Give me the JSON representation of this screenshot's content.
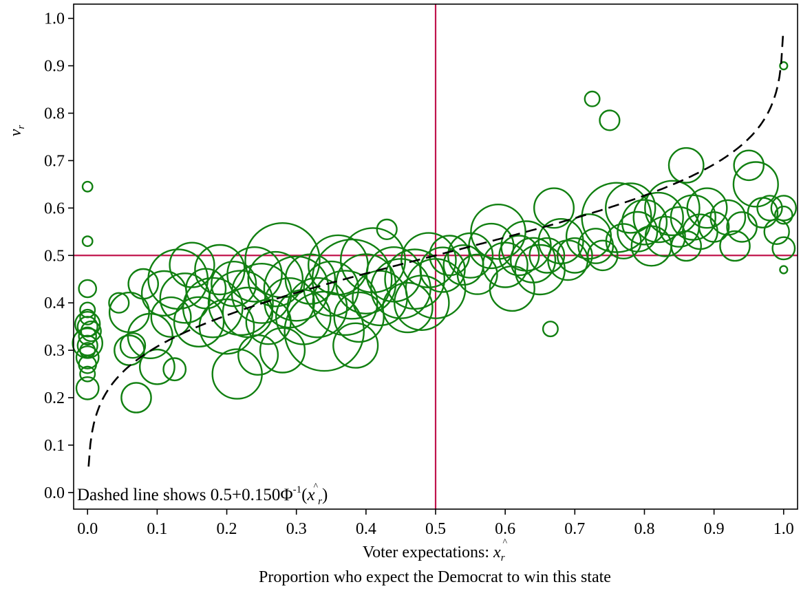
{
  "chart_data": {
    "type": "scatter",
    "title": "",
    "xlabel": {
      "prefix": "Voter expectations: ",
      "var": "x",
      "sub": "r",
      "hat": "^"
    },
    "xlabel2": "Proportion who expect the Democrat to win this state",
    "ylabel": {
      "var": "v",
      "sub": "r"
    },
    "xlim": [
      -0.02,
      1.02
    ],
    "ylim": [
      -0.035,
      1.03
    ],
    "xticks": [
      "0.0",
      "0.1",
      "0.2",
      "0.3",
      "0.4",
      "0.5",
      "0.6",
      "0.7",
      "0.8",
      "0.9",
      "1.0"
    ],
    "yticks": [
      "0.0",
      "0.1",
      "0.2",
      "0.3",
      "0.4",
      "0.5",
      "0.6",
      "0.7",
      "0.8",
      "0.9",
      "1.0"
    ],
    "grid": false,
    "reference_lines": {
      "x": 0.5,
      "y": 0.5,
      "color": "#c0144c"
    },
    "marker_color": "#118011",
    "curve": {
      "style": "dashed",
      "color": "#000000",
      "center": 0.5,
      "scale": 0.15,
      "x_range": [
        0.0015,
        0.999
      ]
    },
    "annotation": {
      "text": "Dashed line shows 0.5+0.150",
      "phi": "Φ",
      "sup": "-1",
      "open": "(",
      "var": "x",
      "hat": "^",
      "sub": "r",
      "close": ")"
    },
    "series": [
      {
        "points": [
          [
            0.0,
            0.645,
            0.2
          ],
          [
            0.0,
            0.53,
            0.2
          ],
          [
            0.0,
            0.43,
            0.35
          ],
          [
            0.0,
            0.385,
            0.3
          ],
          [
            0.0,
            0.37,
            0.3
          ],
          [
            0.0,
            0.35,
            0.4
          ],
          [
            0.0,
            0.33,
            0.35
          ],
          [
            0.0,
            0.31,
            0.4
          ],
          [
            0.0,
            0.3,
            0.3
          ],
          [
            0.0,
            0.285,
            0.45
          ],
          [
            0.0,
            0.27,
            0.35
          ],
          [
            0.0,
            0.25,
            0.3
          ],
          [
            0.0,
            0.22,
            0.45
          ],
          [
            0.0,
            0.315,
            0.6
          ],
          [
            0.0,
            0.355,
            0.5
          ],
          [
            0.005,
            0.34,
            0.4
          ],
          [
            0.045,
            0.4,
            0.4
          ],
          [
            0.06,
            0.3,
            0.6
          ],
          [
            0.065,
            0.31,
            0.5
          ],
          [
            0.07,
            0.2,
            0.6
          ],
          [
            0.06,
            0.38,
            0.8
          ],
          [
            0.08,
            0.44,
            0.6
          ],
          [
            0.09,
            0.33,
            0.9
          ],
          [
            0.1,
            0.265,
            0.7
          ],
          [
            0.11,
            0.42,
            0.9
          ],
          [
            0.12,
            0.37,
            0.8
          ],
          [
            0.125,
            0.26,
            0.45
          ],
          [
            0.13,
            0.45,
            1.2
          ],
          [
            0.14,
            0.41,
            1.0
          ],
          [
            0.15,
            0.48,
            0.9
          ],
          [
            0.16,
            0.36,
            1.0
          ],
          [
            0.17,
            0.43,
            0.8
          ],
          [
            0.18,
            0.39,
            1.2
          ],
          [
            0.19,
            0.47,
            1.0
          ],
          [
            0.2,
            0.35,
            1.1
          ],
          [
            0.21,
            0.44,
            0.9
          ],
          [
            0.215,
            0.25,
            1.0
          ],
          [
            0.22,
            0.4,
            1.3
          ],
          [
            0.23,
            0.38,
            1.0
          ],
          [
            0.24,
            0.46,
            1.1
          ],
          [
            0.245,
            0.29,
            0.8
          ],
          [
            0.25,
            0.42,
            1.2
          ],
          [
            0.26,
            0.36,
            0.9
          ],
          [
            0.27,
            0.45,
            1.1
          ],
          [
            0.28,
            0.3,
            0.9
          ],
          [
            0.28,
            0.49,
            1.5
          ],
          [
            0.29,
            0.4,
            1.0
          ],
          [
            0.3,
            0.43,
            1.3
          ],
          [
            0.31,
            0.37,
            1.1
          ],
          [
            0.32,
            0.45,
            1.0
          ],
          [
            0.33,
            0.39,
            1.2
          ],
          [
            0.34,
            0.34,
            1.6
          ],
          [
            0.35,
            0.43,
            1.1
          ],
          [
            0.36,
            0.48,
            1.2
          ],
          [
            0.37,
            0.4,
            1.3
          ],
          [
            0.38,
            0.45,
            1.6
          ],
          [
            0.385,
            0.31,
            0.9
          ],
          [
            0.39,
            0.37,
            1.0
          ],
          [
            0.4,
            0.44,
            1.2
          ],
          [
            0.41,
            0.49,
            1.3
          ],
          [
            0.42,
            0.41,
            1.1
          ],
          [
            0.43,
            0.555,
            0.4
          ],
          [
            0.44,
            0.46,
            1.1
          ],
          [
            0.45,
            0.43,
            1.2
          ],
          [
            0.46,
            0.39,
            1.0
          ],
          [
            0.47,
            0.45,
            1.2
          ],
          [
            0.48,
            0.4,
            1.1
          ],
          [
            0.49,
            0.49,
            1.1
          ],
          [
            0.5,
            0.43,
            1.2
          ],
          [
            0.51,
            0.47,
            0.9
          ],
          [
            0.52,
            0.5,
            0.8
          ],
          [
            0.54,
            0.48,
            0.8
          ],
          [
            0.55,
            0.5,
            0.9
          ],
          [
            0.56,
            0.46,
            0.8
          ],
          [
            0.58,
            0.52,
            0.9
          ],
          [
            0.59,
            0.55,
            1.1
          ],
          [
            0.6,
            0.48,
            0.9
          ],
          [
            0.61,
            0.43,
            0.9
          ],
          [
            0.62,
            0.5,
            0.8
          ],
          [
            0.63,
            0.52,
            1.0
          ],
          [
            0.64,
            0.49,
            0.9
          ],
          [
            0.65,
            0.47,
            1.0
          ],
          [
            0.66,
            0.5,
            0.7
          ],
          [
            0.665,
            0.345,
            0.3
          ],
          [
            0.67,
            0.6,
            0.8
          ],
          [
            0.68,
            0.53,
            0.9
          ],
          [
            0.69,
            0.49,
            0.8
          ],
          [
            0.7,
            0.5,
            0.7
          ],
          [
            0.72,
            0.54,
            0.9
          ],
          [
            0.73,
            0.52,
            0.7
          ],
          [
            0.725,
            0.83,
            0.3
          ],
          [
            0.75,
            0.785,
            0.4
          ],
          [
            0.74,
            0.5,
            0.6
          ],
          [
            0.76,
            0.58,
            1.4
          ],
          [
            0.77,
            0.53,
            0.7
          ],
          [
            0.78,
            0.6,
            1.0
          ],
          [
            0.79,
            0.55,
            0.8
          ],
          [
            0.8,
            0.57,
            0.9
          ],
          [
            0.81,
            0.52,
            0.8
          ],
          [
            0.82,
            0.58,
            1.0
          ],
          [
            0.83,
            0.54,
            0.8
          ],
          [
            0.84,
            0.6,
            1.1
          ],
          [
            0.85,
            0.56,
            0.8
          ],
          [
            0.86,
            0.69,
            0.7
          ],
          [
            0.86,
            0.52,
            0.6
          ],
          [
            0.87,
            0.58,
            0.9
          ],
          [
            0.88,
            0.55,
            0.7
          ],
          [
            0.89,
            0.6,
            0.8
          ],
          [
            0.9,
            0.56,
            0.6
          ],
          [
            0.92,
            0.58,
            0.7
          ],
          [
            0.93,
            0.52,
            0.6
          ],
          [
            0.94,
            0.56,
            0.6
          ],
          [
            0.95,
            0.69,
            0.6
          ],
          [
            0.96,
            0.65,
            0.9
          ],
          [
            0.97,
            0.59,
            0.6
          ],
          [
            0.98,
            0.6,
            0.5
          ],
          [
            0.99,
            0.55,
            0.5
          ],
          [
            1.0,
            0.9,
            0.15
          ],
          [
            1.0,
            0.6,
            0.5
          ],
          [
            1.0,
            0.585,
            0.35
          ],
          [
            1.0,
            0.515,
            0.45
          ],
          [
            1.0,
            0.47,
            0.15
          ]
        ]
      }
    ]
  }
}
